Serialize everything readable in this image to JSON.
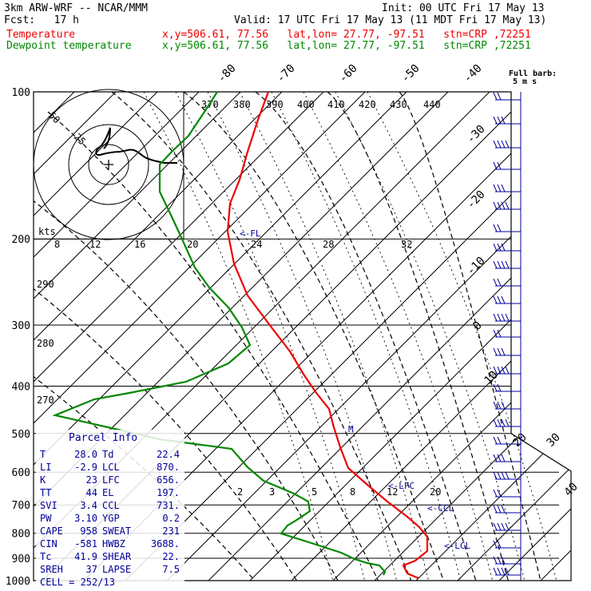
{
  "header": {
    "model": "3km ARW-WRF -- NCAR/MMM",
    "init": "Init: 00 UTC Fri 17 May 13",
    "fcst": "Fcst:   17 h",
    "valid": "Valid: 17 UTC Fri 17 May 13 (11 MDT Fri 17 May 13)",
    "temp_label": "Temperature",
    "dew_label": "Dewpoint temperature",
    "temp_loc": "x,y=506.61, 77.56   lat,lon= 27.77, -97.51   stn=CRP ,72251",
    "dew_loc": "x,y=506.61, 77.56   lat,lon= 27.77, -97.51   stn=CRP ,72251"
  },
  "chart_data": {
    "type": "line",
    "title": "3km ARW-WRF -- NCAR/MMM",
    "xlabel": "",
    "ylabel": "",
    "pressure_levels": [
      100,
      200,
      300,
      400,
      500,
      600,
      700,
      800,
      900,
      1000
    ],
    "pressure_tick_labels": [
      "100",
      "200",
      "300",
      "400",
      "500",
      "600",
      "700",
      "800",
      "900",
      "1000"
    ],
    "isotherm_labels": [
      "-80",
      "-70",
      "-60",
      "-50",
      "-40",
      "-30",
      "-20",
      "-10",
      "0",
      "10",
      "20",
      "30",
      "40"
    ],
    "theta_labels": [
      "370",
      "380",
      "390",
      "400",
      "410",
      "420",
      "430",
      "440"
    ],
    "mixing_ratio_labels": [
      "2",
      "3",
      "5",
      "8",
      "12",
      "20"
    ],
    "hodograph_speed_labels": [
      "kts",
      "8",
      "12",
      "16",
      "20",
      "24",
      "28",
      "32"
    ],
    "hodograph_ring_labels": [
      "50",
      "25"
    ],
    "side_labels": [
      "290",
      "280",
      "270"
    ],
    "markers": {
      "fl": "<-FL",
      "lfc": "<-LFC",
      "ccl": "<-CCL",
      "lcl": "<-LCL",
      "m": "M"
    },
    "wind_key": {
      "line1": "Full barb:",
      "line2": "5 m s"
    },
    "series": [
      {
        "name": "Temperature",
        "color": "#ee0000"
      },
      {
        "name": "Dewpoint temperature",
        "color": "#008800"
      }
    ]
  },
  "parcel": {
    "title": "Parcel Info",
    "rows": [
      [
        "T",
        "28.0",
        "Td",
        "22.4"
      ],
      [
        "LI",
        "-2.9",
        "LCL",
        "870."
      ],
      [
        "K",
        "23",
        "LFC",
        "656."
      ],
      [
        "TT",
        "44",
        "EL",
        "197."
      ],
      [
        "SVI",
        "3.4",
        "CCL",
        "731."
      ],
      [
        "PW",
        "3.10",
        "YGP",
        "0.2"
      ],
      [
        "CAPE",
        "958",
        "SWEAT",
        "231"
      ],
      [
        "CIN",
        "-581",
        "HWBZ",
        "3688."
      ],
      [
        "Tc",
        "41.9",
        "SHEAR",
        "22."
      ],
      [
        "SREH",
        "37",
        "LAPSE",
        "7.5"
      ]
    ],
    "cell": "CELL = 252/13"
  },
  "colors": {
    "temperature": "#ee0000",
    "dewpoint": "#008800",
    "info": "#000099",
    "grid": "#000000"
  }
}
